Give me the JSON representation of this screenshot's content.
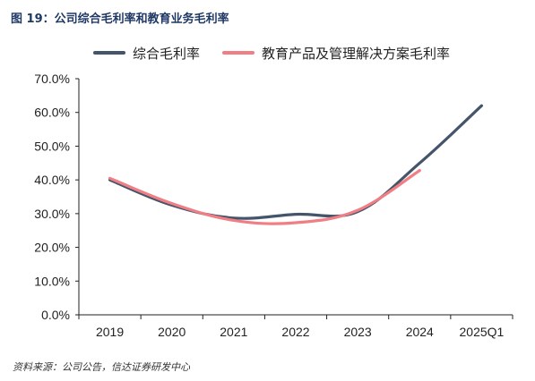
{
  "figure": {
    "title": "图 19：公司综合毛利率和教育业务毛利率",
    "source": "资料来源：公司公告，信达证券研发中心"
  },
  "colors": {
    "title": "#1f3864",
    "series_1": "#44546a",
    "series_2": "#f07f85",
    "axis": "#222222"
  },
  "chart_data": {
    "type": "line",
    "categories": [
      "2019",
      "2020",
      "2021",
      "2022",
      "2023",
      "2024",
      "2025Q1"
    ],
    "ylim": [
      0,
      70
    ],
    "yticks": [
      0,
      10,
      20,
      30,
      40,
      50,
      60,
      70
    ],
    "ytick_labels": [
      "0.0%",
      "10.0%",
      "20.0%",
      "30.0%",
      "40.0%",
      "50.0%",
      "60.0%",
      "70.0%"
    ],
    "legend_position": "top",
    "grid": false,
    "series": [
      {
        "name": "综合毛利率",
        "values": [
          40.0,
          32.5,
          28.7,
          29.8,
          30.6,
          45.0,
          62.0
        ]
      },
      {
        "name": "教育产品及管理解决方案毛利率",
        "values": [
          40.5,
          33.0,
          28.0,
          27.3,
          31.0,
          42.8,
          null
        ]
      }
    ]
  }
}
